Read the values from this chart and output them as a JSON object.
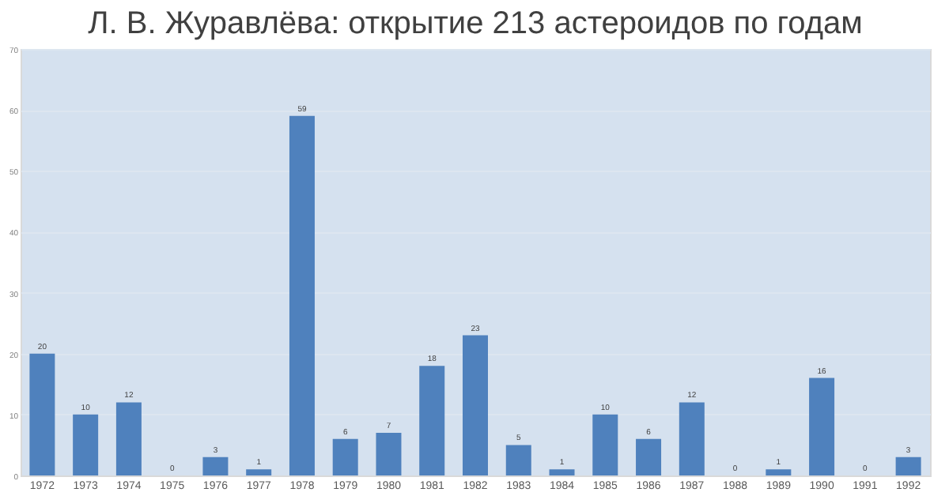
{
  "chart_data": {
    "type": "bar",
    "title": "Л. В. Журавлёва: открытие 213 астероидов по годам",
    "categories": [
      "1972",
      "1973",
      "1974",
      "1975",
      "1976",
      "1977",
      "1978",
      "1979",
      "1980",
      "1981",
      "1982",
      "1983",
      "1984",
      "1985",
      "1986",
      "1987",
      "1988",
      "1989",
      "1990",
      "1991",
      "1992"
    ],
    "values": [
      20,
      10,
      12,
      0,
      3,
      1,
      59,
      6,
      7,
      18,
      23,
      5,
      1,
      10,
      6,
      12,
      0,
      1,
      16,
      0,
      3
    ],
    "color": "#4f81bd",
    "ylim": [
      0,
      70
    ],
    "yticks": [
      0,
      10,
      20,
      30,
      40,
      50,
      60,
      70
    ],
    "grid": "y",
    "data_labels": true
  }
}
